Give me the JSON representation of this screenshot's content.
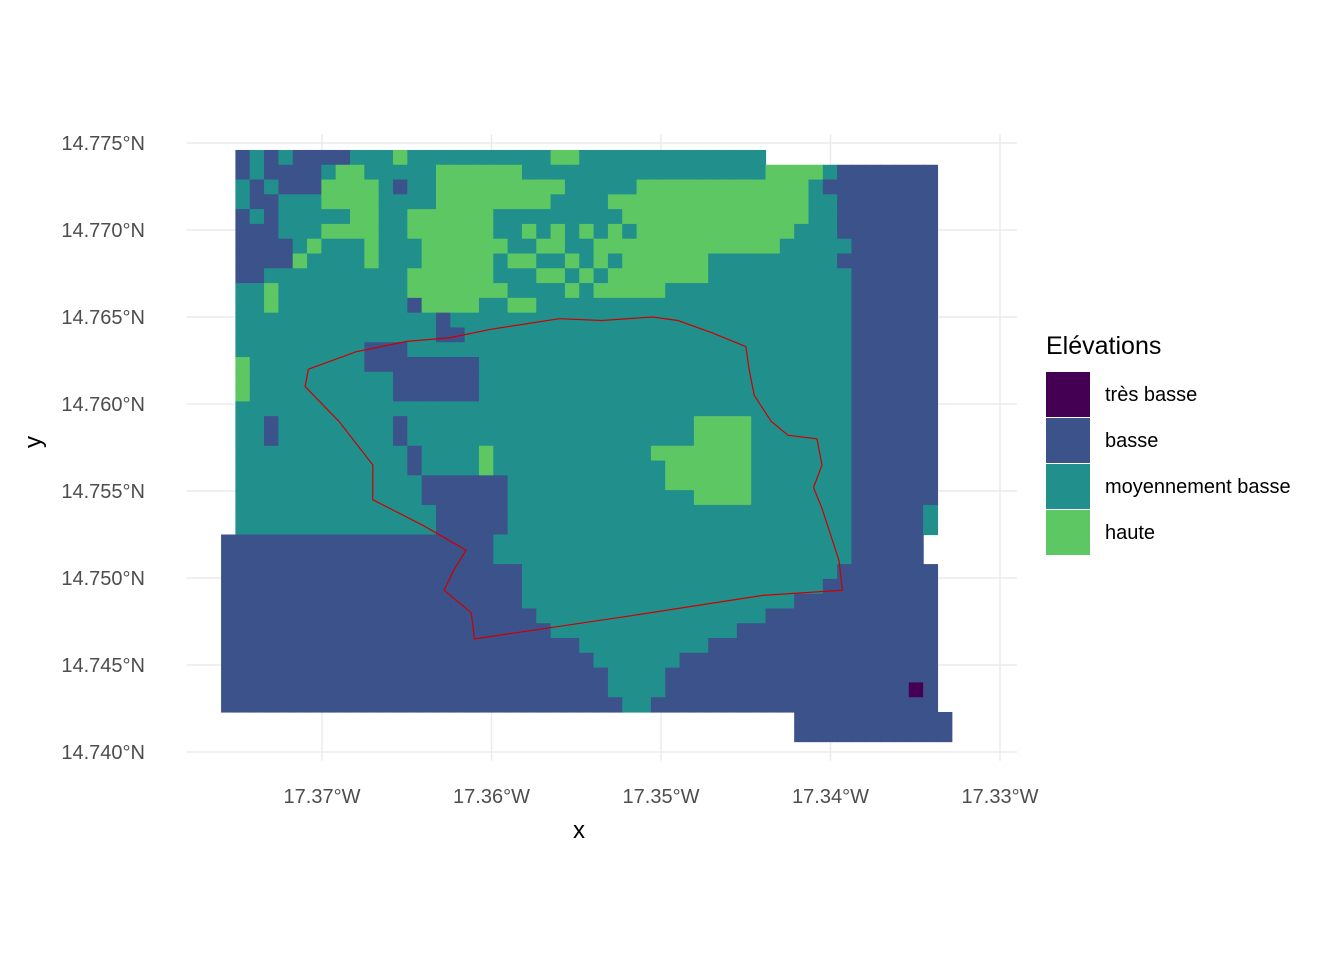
{
  "chart_data": {
    "type": "heatmap",
    "title": "",
    "xlabel": "x",
    "ylabel": "y",
    "xlim": [
      -17.378,
      -17.329
    ],
    "ylim": [
      14.7395,
      14.7755
    ],
    "grid": true,
    "legend_placement": "right",
    "x_ticks": [
      {
        "value": -17.37,
        "label": "17.37°W"
      },
      {
        "value": -17.36,
        "label": "17.36°W"
      },
      {
        "value": -17.35,
        "label": "17.35°W"
      },
      {
        "value": -17.34,
        "label": "17.34°W"
      },
      {
        "value": -17.33,
        "label": "17.33°W"
      }
    ],
    "y_ticks": [
      {
        "value": 14.775,
        "label": "14.775°N"
      },
      {
        "value": 14.77,
        "label": "14.770°N"
      },
      {
        "value": 14.765,
        "label": "14.765°N"
      },
      {
        "value": 14.76,
        "label": "14.760°N"
      },
      {
        "value": 14.755,
        "label": "14.755°N"
      },
      {
        "value": 14.75,
        "label": "14.750°N"
      },
      {
        "value": 14.745,
        "label": "14.745°N"
      },
      {
        "value": 14.74,
        "label": "14.740°N"
      }
    ],
    "legend": {
      "title": "Elévations",
      "classes": [
        {
          "label": "très basse",
          "color": "#440154"
        },
        {
          "label": "basse",
          "color": "#3b528b"
        },
        {
          "label": "moyennement basse",
          "color": "#21908c"
        },
        {
          "label": "haute",
          "color": "#5dc863"
        }
      ]
    },
    "raster": {
      "x_min": -17.3768,
      "x_max": -17.332,
      "y_min": 14.7406,
      "y_max": 14.7746,
      "cols": 53,
      "rows": 40,
      "nodata": ".",
      "class_codes": {
        "0": "très basse",
        "1": "basse",
        "2": "moyennement basse",
        "3": "haute"
      },
      "grid": [
        "..1212111122232222222222332222222222222..............",
        "..1211112332222233333322222222222222222333321111111..",
        "..2121113333212233333333322222333333333333211111111..",
        "..2112223333222233333333222233333333333333221111111..",
        "..1212222233223333332222222223333333333333221111111..",
        "..1112223333223333332232323232333333333332221111111..",
        "..1111232223222333333223322333333333333322222111111..",
        "..1111322223222333332332232323333332222222221111111..",
        "..1122222222223333332223323233333332222222222111111..",
        "..2232222222223333333222232333332222222222222111111..",
        "..2232222222221333322332222222222222222222222111111..",
        "..2222222222222212222222222222222222222222222111111..",
        "..2222222222222211222222222222222222222222222111111..",
        "..2222222221112222222222222222222222222222222111111..",
        "..3222222221111111122222222222222222222222222111111..",
        "..3222222222211111122222222222222222222222222111111..",
        "..3222222222211111122222222222222222222222222111111..",
        "..2222222222222222222222222222222222222222222111111..",
        "..2212222222212222222222222222222233332222222111111..",
        "..2212222222212222222222222222222233332222222111111..",
        "..2222222222221222232222222222233333332222222111111..",
        "..2222222222221222232222222222223333332222222111111..",
        "..2222222222222111111222222222223333332222222111111..",
        "..2222222222222111111222222222222233332222222111111..",
        "..2222222222222211111222222222222222222222222111112..",
        "..2222222222222211111222222222222222222222222111112..",
        ".1111111111111111111222222222222222222222222211111..",
        ".1111111111111111111222222222222222222222222211111..",
        ".11111111111111111111122222222222222222222221111111..",
        ".11111111111111111111122222222222222222222211111111..",
        ".11111111111111111111122222222222222222221111111111..",
        ".11111111111111111111112222222222222222111111111111..",
        ".11111111111111111111111222222222222211111111111111..",
        ".11111111111111111111111112222222221111111111111111..",
        ".11111111111111111111111111222222111111111111111111..",
        ".11111111111111111111111111122221111111111111111111..",
        ".11111111111111111111111111122221111111111111111101..",
        ".11111111111111111111111111112211111111111111111111..",
        ".........................................11111111111.",
        ".........................................11111111111."
      ]
    },
    "boundary": {
      "color": "#cc0000",
      "lonlat": [
        [
          -17.356,
          14.7649
        ],
        [
          -17.3535,
          14.7648
        ],
        [
          -17.3505,
          14.765
        ],
        [
          -17.349,
          14.7648
        ],
        [
          -17.347,
          14.7641
        ],
        [
          -17.345,
          14.7633
        ],
        [
          -17.3448,
          14.762
        ],
        [
          -17.3445,
          14.7605
        ],
        [
          -17.3435,
          14.759
        ],
        [
          -17.3425,
          14.7582
        ],
        [
          -17.3408,
          14.758
        ],
        [
          -17.3405,
          14.7565
        ],
        [
          -17.341,
          14.7552
        ],
        [
          -17.3405,
          14.754
        ],
        [
          -17.3395,
          14.751
        ],
        [
          -17.3393,
          14.7493
        ],
        [
          -17.344,
          14.749
        ],
        [
          -17.352,
          14.7478
        ],
        [
          -17.361,
          14.7465
        ],
        [
          -17.3612,
          14.748
        ],
        [
          -17.3628,
          14.7493
        ],
        [
          -17.3622,
          14.7505
        ],
        [
          -17.3615,
          14.7516
        ],
        [
          -17.364,
          14.753
        ],
        [
          -17.366,
          14.754
        ],
        [
          -17.367,
          14.7545
        ],
        [
          -17.367,
          14.7565
        ],
        [
          -17.369,
          14.759
        ],
        [
          -17.371,
          14.761
        ],
        [
          -17.3708,
          14.762
        ],
        [
          -17.368,
          14.763
        ],
        [
          -17.365,
          14.7636
        ],
        [
          -17.3625,
          14.7638
        ],
        [
          -17.36,
          14.7643
        ],
        [
          -17.356,
          14.7649
        ]
      ]
    }
  }
}
